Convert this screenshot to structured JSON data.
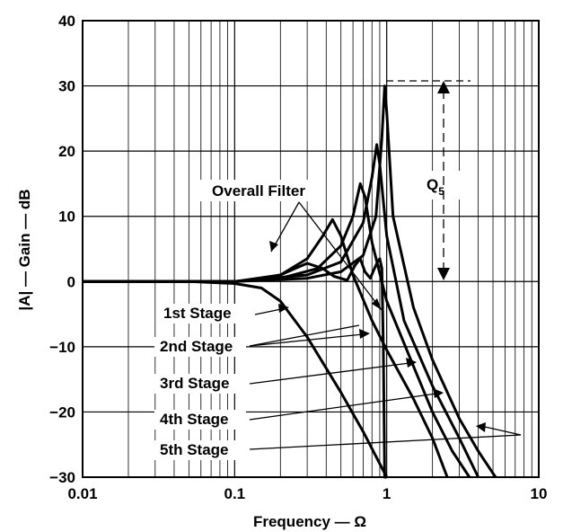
{
  "chart_data": {
    "type": "line",
    "title": "",
    "xlabel": "Frequency — Ω",
    "ylabel": "|A| — Gain — dB",
    "xscale": "log",
    "xlim": [
      0.01,
      10
    ],
    "ylim": [
      -30,
      40
    ],
    "x_tick_labels": [
      "0.01",
      "0.1",
      "1",
      "10"
    ],
    "y_tick_labels": [
      "40",
      "30",
      "20",
      "10",
      "0",
      "−10",
      "−20",
      "−30"
    ],
    "grid": true,
    "annotations": {
      "overall_filter": "Overall Filter",
      "q_label": "Q",
      "q_sub": "5",
      "stage1": "1st Stage",
      "stage2": "2nd Stage",
      "stage3": "3rd Stage",
      "stage4": "4th Stage",
      "stage5": "5th Stage"
    },
    "series": [
      {
        "name": "1st Stage",
        "x": [
          0.01,
          0.05,
          0.1,
          0.15,
          0.2,
          0.3,
          0.5,
          0.7,
          1.0
        ],
        "y": [
          0,
          0,
          -0.3,
          -1.0,
          -3.0,
          -8.5,
          -17,
          -23,
          -30
        ]
      },
      {
        "name": "2nd Stage",
        "x": [
          0.01,
          0.1,
          0.2,
          0.3,
          0.38,
          0.44,
          0.5,
          0.6,
          0.8,
          1.0,
          1.5,
          2.0,
          2.5
        ],
        "y": [
          0,
          0,
          1.0,
          3.5,
          7.0,
          9.5,
          7.0,
          1.0,
          -6.0,
          -10.5,
          -18,
          -24,
          -30
        ]
      },
      {
        "name": "3rd Stage",
        "x": [
          0.01,
          0.1,
          0.2,
          0.35,
          0.5,
          0.6,
          0.67,
          0.72,
          0.8,
          1.0,
          1.5,
          2.0,
          2.7,
          3.5
        ],
        "y": [
          0,
          0,
          0.5,
          2.0,
          5.5,
          10.0,
          15.0,
          13.0,
          6.0,
          -3.0,
          -13,
          -20,
          -26,
          -30
        ]
      },
      {
        "name": "4th Stage",
        "x": [
          0.01,
          0.1,
          0.3,
          0.5,
          0.7,
          0.8,
          0.86,
          0.9,
          1.0,
          1.3,
          2.0,
          3.0,
          4.0
        ],
        "y": [
          0,
          0,
          1.0,
          3.0,
          9.0,
          16.0,
          21.0,
          18.0,
          7.0,
          -6.0,
          -16,
          -24,
          -30
        ]
      },
      {
        "name": "5th Stage",
        "x": [
          0.01,
          0.1,
          0.3,
          0.5,
          0.7,
          0.85,
          0.93,
          0.97,
          1.0,
          1.1,
          1.5,
          2.0,
          3.0,
          4.0,
          5.2
        ],
        "y": [
          0,
          0,
          0.5,
          1.5,
          4.0,
          10.0,
          22.0,
          30.0,
          26.0,
          10.0,
          -4.0,
          -12,
          -21,
          -26,
          -30
        ]
      },
      {
        "name": "Overall Filter",
        "x": [
          0.01,
          0.1,
          0.15,
          0.2,
          0.25,
          0.3,
          0.38,
          0.45,
          0.55,
          0.62,
          0.67,
          0.72,
          0.78,
          0.83,
          0.87,
          0.9,
          0.93,
          0.95,
          0.97,
          1.0
        ],
        "y": [
          0,
          0,
          0.5,
          1.0,
          2.0,
          2.8,
          2.0,
          0.8,
          0.2,
          2.5,
          3.5,
          1.5,
          0.5,
          2.0,
          3.0,
          3.5,
          2.0,
          -10,
          -30,
          -30
        ]
      }
    ]
  }
}
